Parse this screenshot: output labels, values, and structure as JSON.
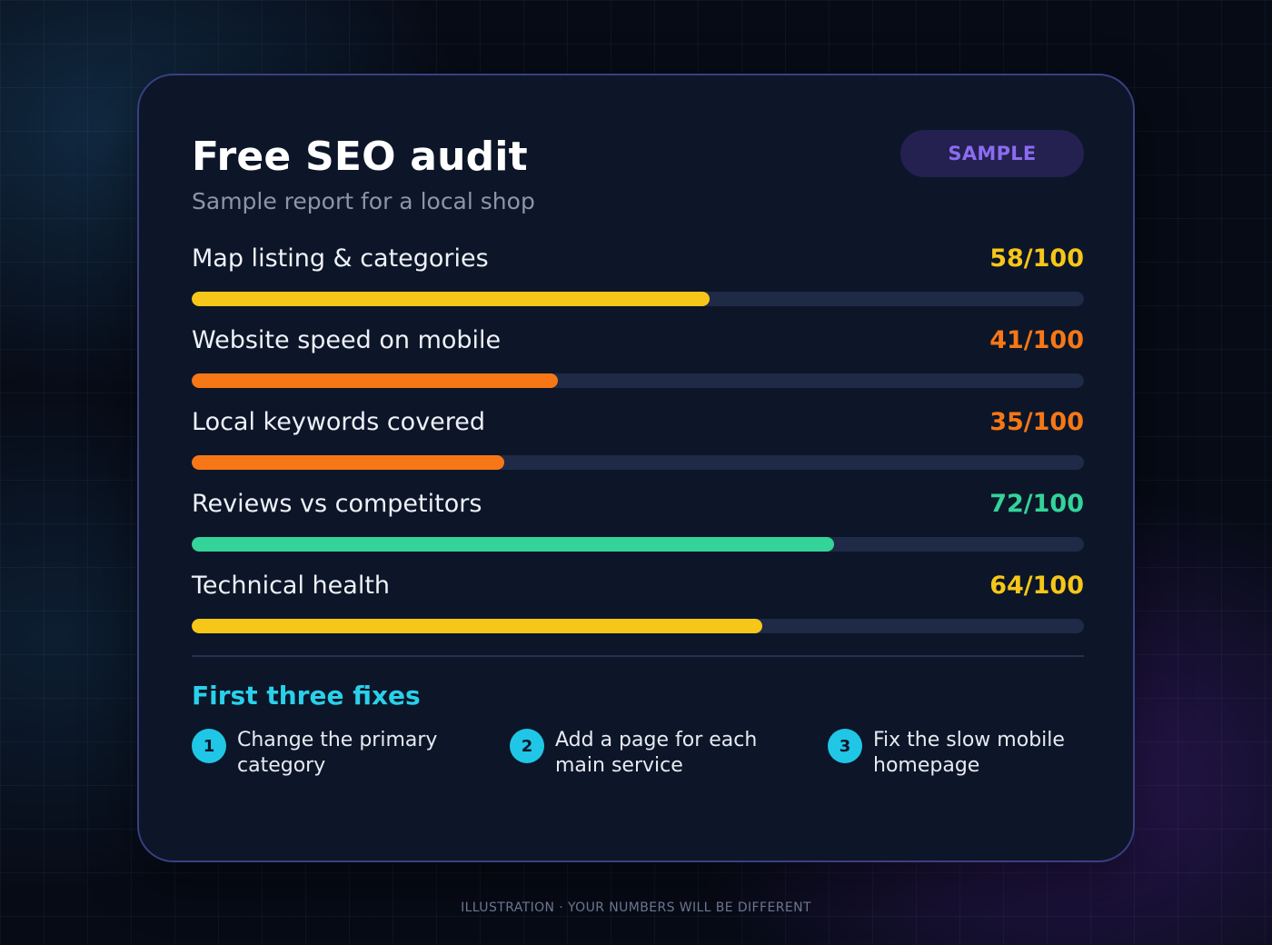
{
  "card": {
    "title": "Free SEO audit",
    "subtitle": "Sample report for a local shop",
    "badge": "SAMPLE"
  },
  "metrics": [
    {
      "label": "Map listing & categories",
      "score_text": "58/100",
      "value": 58,
      "color": "#f6c619"
    },
    {
      "label": "Website speed on mobile",
      "score_text": "41/100",
      "value": 41,
      "color": "#f77716"
    },
    {
      "label": "Local keywords covered",
      "score_text": "35/100",
      "value": 35,
      "color": "#f77716"
    },
    {
      "label": "Reviews vs competitors",
      "score_text": "72/100",
      "value": 72,
      "color": "#34d399"
    },
    {
      "label": "Technical health",
      "score_text": "64/100",
      "value": 64,
      "color": "#f6c619"
    }
  ],
  "fixes": {
    "title": "First three fixes",
    "items": [
      {
        "number": "1",
        "text": "Change the primary category"
      },
      {
        "number": "2",
        "text": "Add a page for each main service"
      },
      {
        "number": "3",
        "text": "Fix the slow mobile homepage"
      }
    ]
  },
  "footer": "ILLUSTRATION · YOUR NUMBERS WILL BE DIFFERENT",
  "colors": {
    "accent": "#2ad0ea",
    "badge_text": "#8a6cf0",
    "card_border": "#3a3f82"
  }
}
